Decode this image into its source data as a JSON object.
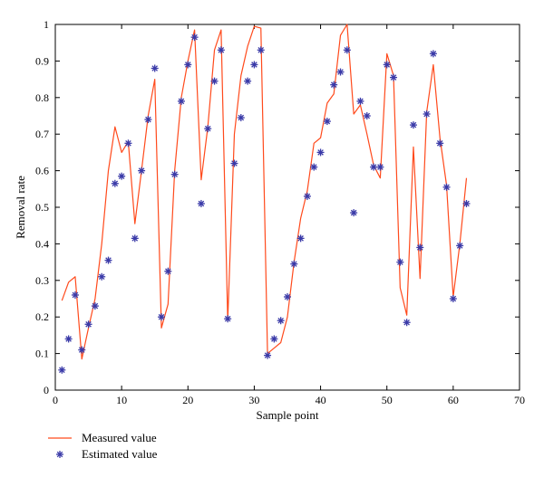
{
  "chart_data": {
    "type": "line",
    "xlabel": "Sample point",
    "ylabel": "Removal rate",
    "xlim": [
      0,
      70
    ],
    "ylim": [
      0,
      1
    ],
    "xticks": [
      "0",
      "10",
      "20",
      "30",
      "40",
      "50",
      "60",
      "70"
    ],
    "yticks": [
      "0",
      "0.1",
      "0.2",
      "0.3",
      "0.4",
      "0.5",
      "0.6",
      "0.7",
      "0.8",
      "0.9",
      "1"
    ],
    "grid": false,
    "legend_position": "bottom-left",
    "series": [
      {
        "name": "Measured value",
        "style": "line",
        "color": "#ff4a1c",
        "x": [
          1,
          2,
          3,
          4,
          5,
          6,
          7,
          8,
          9,
          10,
          11,
          12,
          13,
          14,
          15,
          16,
          17,
          18,
          19,
          20,
          21,
          22,
          23,
          24,
          25,
          26,
          27,
          28,
          29,
          30,
          31,
          32,
          33,
          34,
          35,
          36,
          37,
          38,
          39,
          40,
          41,
          42,
          43,
          44,
          45,
          46,
          47,
          48,
          49,
          50,
          51,
          52,
          53,
          54,
          55,
          56,
          57,
          58,
          59,
          60,
          61,
          62
        ],
        "y": [
          0.245,
          0.295,
          0.31,
          0.085,
          0.17,
          0.25,
          0.4,
          0.6,
          0.72,
          0.65,
          0.68,
          0.455,
          0.6,
          0.75,
          0.85,
          0.17,
          0.235,
          0.6,
          0.8,
          0.9,
          0.985,
          0.575,
          0.72,
          0.93,
          0.985,
          0.19,
          0.7,
          0.86,
          0.94,
          0.995,
          0.99,
          0.1,
          0.115,
          0.13,
          0.2,
          0.35,
          0.47,
          0.545,
          0.675,
          0.69,
          0.785,
          0.81,
          0.97,
          1.0,
          0.755,
          0.78,
          0.7,
          0.615,
          0.58,
          0.92,
          0.86,
          0.28,
          0.205,
          0.665,
          0.305,
          0.76,
          0.89,
          0.69,
          0.56,
          0.255,
          0.4,
          0.58
        ]
      },
      {
        "name": "Estimated value",
        "style": "marker",
        "marker": "*",
        "color": "#3a3aa8",
        "x": [
          1,
          2,
          3,
          4,
          5,
          6,
          7,
          8,
          9,
          10,
          11,
          12,
          13,
          14,
          15,
          16,
          17,
          18,
          19,
          20,
          21,
          22,
          23,
          24,
          25,
          26,
          27,
          28,
          29,
          30,
          31,
          32,
          33,
          34,
          35,
          36,
          37,
          38,
          39,
          40,
          41,
          42,
          43,
          44,
          45,
          46,
          47,
          48,
          49,
          50,
          51,
          52,
          53,
          54,
          55,
          56,
          57,
          58,
          59,
          60,
          61,
          62
        ],
        "y": [
          0.055,
          0.14,
          0.26,
          0.11,
          0.18,
          0.23,
          0.31,
          0.355,
          0.565,
          0.585,
          0.675,
          0.415,
          0.6,
          0.74,
          0.88,
          0.2,
          0.325,
          0.59,
          0.79,
          0.89,
          0.965,
          0.51,
          0.715,
          0.845,
          0.93,
          0.195,
          0.62,
          0.745,
          0.845,
          0.89,
          0.93,
          0.095,
          0.14,
          0.19,
          0.255,
          0.345,
          0.415,
          0.53,
          0.61,
          0.65,
          0.735,
          0.835,
          0.87,
          0.93,
          0.485,
          0.79,
          0.75,
          0.61,
          0.61,
          0.89,
          0.855,
          0.35,
          0.185,
          0.725,
          0.39,
          0.755,
          0.92,
          0.675,
          0.555,
          0.25,
          0.395,
          0.51
        ]
      }
    ]
  }
}
